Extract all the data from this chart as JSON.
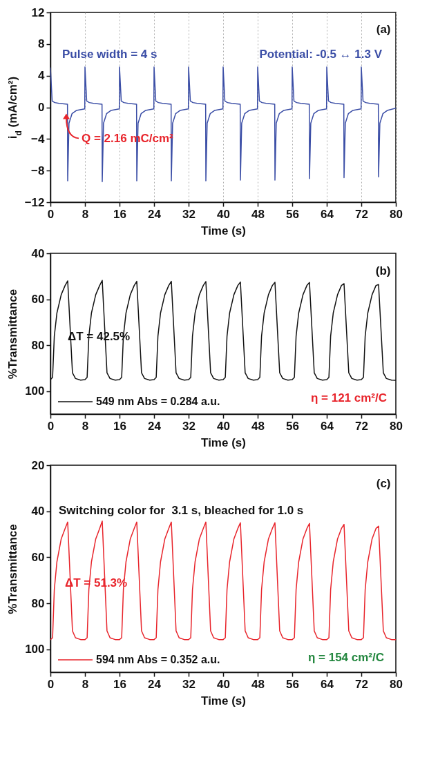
{
  "chart_data": [
    {
      "type": "line",
      "xlabel": "Time (s)",
      "ylabel": "i$_{d}$ (mA/cm²)",
      "xlim": [
        0,
        80
      ],
      "xticks": [
        0,
        8,
        16,
        24,
        32,
        40,
        48,
        56,
        64,
        72,
        80
      ],
      "ylim": [
        -12,
        12
      ],
      "yticks": [
        -12,
        -8,
        -4,
        0,
        4,
        8,
        12
      ],
      "grid": "x",
      "legend": false,
      "annotations": [
        "(a)",
        "Pulse width = 4 s",
        "Potential: -0.5 ↔ 1.3 V",
        "Q = 2.16 mC/cm²"
      ],
      "series": [
        {
          "color": "#3b4ea6",
          "x": [
            0,
            0.4,
            1,
            2,
            3.95,
            4,
            4.3,
            5,
            6,
            7.95,
            8,
            8.4,
            9,
            10,
            11.95,
            12,
            12.3,
            13,
            14,
            15.95,
            16,
            16.4,
            17,
            18,
            19.95,
            20,
            20.3,
            21,
            22,
            23.95,
            24,
            24.4,
            25,
            26,
            27.95,
            28,
            28.3,
            29,
            30,
            31.95,
            32,
            32.4,
            33,
            34,
            35.95,
            36,
            36.3,
            37,
            38,
            39.95,
            40,
            40.4,
            41,
            42,
            43.95,
            44,
            44.3,
            45,
            46,
            47.95,
            48,
            48.4,
            49,
            50,
            51.95,
            52,
            52.3,
            53,
            54,
            55.95,
            56,
            56.4,
            57,
            58,
            59.95,
            60,
            60.3,
            61,
            62,
            63.95,
            64,
            64.4,
            65,
            66,
            67.95,
            68,
            68.3,
            69,
            70,
            71.95,
            72,
            72.4,
            73,
            74,
            75.95,
            76,
            76.3,
            77,
            78,
            80
          ],
          "values": [
            5.0,
            0.8,
            0.6,
            0.5,
            0.4,
            -9.3,
            -2.0,
            -0.8,
            -0.4,
            -0.2,
            5.1,
            0.8,
            0.6,
            0.5,
            0.4,
            -9.4,
            -2.0,
            -0.8,
            -0.4,
            -0.2,
            5.1,
            0.8,
            0.6,
            0.5,
            0.4,
            -9.3,
            -2.0,
            -0.8,
            -0.4,
            -0.2,
            5.1,
            0.8,
            0.6,
            0.5,
            0.4,
            -9.3,
            -2.0,
            -0.8,
            -0.4,
            -0.2,
            5.1,
            0.8,
            0.6,
            0.5,
            0.4,
            -9.3,
            -2.0,
            -0.8,
            -0.4,
            -0.2,
            5.1,
            0.8,
            0.6,
            0.5,
            0.4,
            -9.2,
            -2.0,
            -0.8,
            -0.4,
            -0.2,
            5.1,
            0.8,
            0.6,
            0.5,
            0.4,
            -9.2,
            -2.0,
            -0.8,
            -0.4,
            -0.2,
            5.1,
            0.8,
            0.6,
            0.5,
            0.4,
            -9.0,
            -2.0,
            -0.8,
            -0.4,
            -0.2,
            5.1,
            0.8,
            0.6,
            0.5,
            0.4,
            -8.9,
            -2.0,
            -0.8,
            -0.4,
            -0.2,
            5.1,
            0.8,
            0.6,
            0.5,
            0.4,
            -8.8,
            -2.0,
            -0.8,
            -0.4,
            -0.1
          ]
        }
      ]
    },
    {
      "type": "line",
      "xlabel": "Time (s)",
      "ylabel": "%Transmittance",
      "xlim": [
        0,
        80
      ],
      "xticks": [
        0,
        8,
        16,
        24,
        32,
        40,
        48,
        56,
        64,
        72,
        80
      ],
      "ylim": [
        110,
        40
      ],
      "yticks": [
        40,
        60,
        80,
        100
      ],
      "legend": "bottom left",
      "annotations": [
        "(b)",
        "ΔT = 42.5%",
        "η = 121 cm²/C"
      ],
      "series": [
        {
          "name": "549 nm Abs = 0.284 a.u.",
          "color": "#111111",
          "x": [
            0,
            0.5,
            0.9,
            1.5,
            2.5,
            3.4,
            4,
            5.1,
            5.8,
            7,
            8,
            8.5,
            8.9,
            9.5,
            10.5,
            11.4,
            12,
            13.1,
            13.8,
            15,
            16,
            16.5,
            16.9,
            17.5,
            18.5,
            19.4,
            20,
            21.1,
            21.8,
            23,
            24,
            24.5,
            24.9,
            25.5,
            26.5,
            27.4,
            28,
            29.1,
            29.8,
            31,
            32,
            32.5,
            32.9,
            33.5,
            34.5,
            35.4,
            36,
            37.1,
            37.8,
            39,
            40,
            40.5,
            40.9,
            41.5,
            42.5,
            43.4,
            44,
            45.1,
            45.8,
            47,
            48,
            48.5,
            48.9,
            49.5,
            50.5,
            51.4,
            52,
            53.1,
            53.8,
            55,
            56,
            56.5,
            56.9,
            57.5,
            58.5,
            59.4,
            60,
            61.1,
            61.8,
            63,
            64,
            64.5,
            64.9,
            65.5,
            66.5,
            67.4,
            68,
            69.1,
            69.8,
            71,
            72,
            72.5,
            72.9,
            73.5,
            74.5,
            75.4,
            76,
            77.1,
            77.8,
            79,
            80
          ],
          "values": [
            95,
            94,
            76,
            66,
            58,
            54,
            52,
            92,
            94.5,
            95.2,
            95,
            94,
            76,
            66,
            58,
            54,
            51.8,
            92,
            94.5,
            95.2,
            95,
            94,
            76,
            66,
            58,
            54,
            52.2,
            92,
            94.5,
            95.2,
            95,
            94,
            76,
            66,
            58,
            54,
            52.2,
            92,
            94.5,
            95.2,
            95,
            94,
            76,
            66,
            58,
            54,
            52.3,
            92,
            94.5,
            95.2,
            95,
            94,
            76,
            66,
            58,
            54,
            52.5,
            92,
            94.5,
            95.2,
            95,
            94,
            76,
            66,
            58,
            54,
            52.6,
            92,
            94.5,
            95.2,
            95,
            94,
            76,
            66,
            58,
            54,
            52.7,
            92,
            94.5,
            95.2,
            95,
            94,
            76,
            66,
            58,
            54,
            53.2,
            92,
            94.5,
            95.2,
            95,
            94,
            76,
            66,
            58,
            54,
            53.6,
            92,
            94.5,
            95.2,
            95.3
          ]
        }
      ]
    },
    {
      "type": "line",
      "xlabel": "Time (s)",
      "ylabel": "%Transmittance",
      "xlim": [
        0,
        80
      ],
      "xticks": [
        0,
        8,
        16,
        24,
        32,
        40,
        48,
        56,
        64,
        72,
        80
      ],
      "ylim": [
        110,
        20
      ],
      "yticks": [
        20,
        40,
        60,
        80,
        100
      ],
      "legend": "bottom left",
      "annotations": [
        "(c)",
        "Switching color for  3.1 s, bleached for 1.0 s",
        "ΔT = 51.3%",
        "η = 154 cm²/C"
      ],
      "series": [
        {
          "name": "594 nm Abs = 0.352 a.u.",
          "color": "#e8242b",
          "x": [
            0,
            0.5,
            0.9,
            1.5,
            2.5,
            3.4,
            4,
            5.1,
            5.8,
            7,
            8,
            8.5,
            8.9,
            9.5,
            10.5,
            11.4,
            12,
            13.1,
            13.8,
            15,
            16,
            16.5,
            16.9,
            17.5,
            18.5,
            19.4,
            20,
            21.1,
            21.8,
            23,
            24,
            24.5,
            24.9,
            25.5,
            26.5,
            27.4,
            28,
            29.1,
            29.8,
            31,
            32,
            32.5,
            32.9,
            33.5,
            34.5,
            35.4,
            36,
            37.1,
            37.8,
            39,
            40,
            40.5,
            40.9,
            41.5,
            42.5,
            43.4,
            44,
            45.1,
            45.8,
            47,
            48,
            48.5,
            48.9,
            49.5,
            50.5,
            51.4,
            52,
            53.1,
            53.8,
            55,
            56,
            56.5,
            56.9,
            57.5,
            58.5,
            59.4,
            60,
            61.1,
            61.8,
            63,
            64,
            64.5,
            64.9,
            65.5,
            66.5,
            67.4,
            68,
            69.1,
            69.8,
            71,
            72,
            72.5,
            72.9,
            73.5,
            74.5,
            75.4,
            76,
            77.1,
            77.8,
            79,
            80
          ],
          "values": [
            95.8,
            95,
            74,
            62,
            52,
            47.5,
            44.7,
            92,
            95,
            95.8,
            95.8,
            95,
            74,
            62,
            52,
            47.5,
            44.3,
            92,
            95,
            95.8,
            95.8,
            95,
            74,
            62,
            52,
            47.5,
            44.7,
            92,
            95,
            95.8,
            95.8,
            95,
            74,
            62,
            52,
            47.5,
            44.7,
            92,
            95,
            95.8,
            95.8,
            95,
            74,
            62,
            52,
            47.5,
            44.7,
            92,
            95,
            95.8,
            95.8,
            95,
            74,
            62,
            52,
            47.5,
            45,
            92,
            95,
            95.8,
            95.8,
            95,
            74,
            62,
            52,
            47.5,
            45,
            92,
            95,
            95.8,
            95.8,
            95,
            74,
            62,
            52,
            47.5,
            45.3,
            92,
            95,
            95.8,
            95.8,
            95,
            74,
            62,
            52,
            47.5,
            45.7,
            92,
            95,
            95.8,
            95.8,
            95,
            74,
            62,
            52,
            47.5,
            46.5,
            92,
            95,
            95.8,
            95.8
          ]
        }
      ]
    }
  ]
}
